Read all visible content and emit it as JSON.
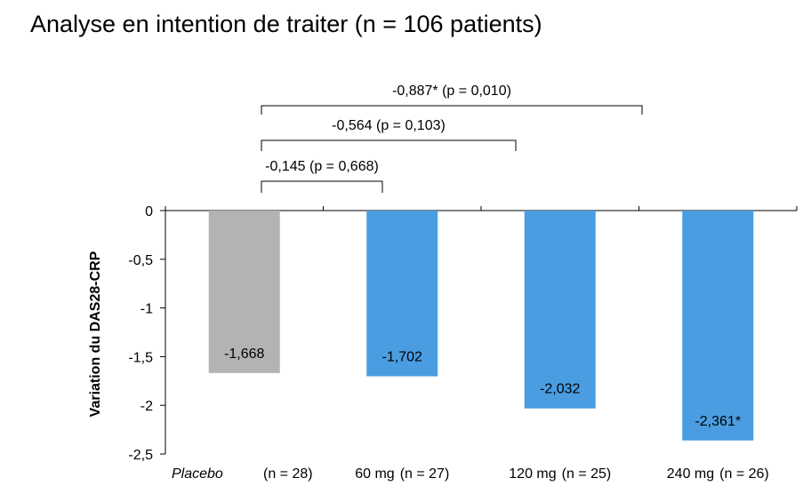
{
  "chart_data": {
    "type": "bar",
    "title": "Analyse en intention de traiter (n = 106 patients)",
    "ylabel": "Variation du DAS28-CRP",
    "ylim": [
      -2.5,
      0
    ],
    "yticks": [
      "0",
      "-0,5",
      "-1",
      "-1,5",
      "-2",
      "-2,5"
    ],
    "ytick_values": [
      0,
      -0.5,
      -1,
      -1.5,
      -2,
      -2.5
    ],
    "categories": [
      {
        "name": "Placebo",
        "n": "(n = 28)"
      },
      {
        "name": "60 mg",
        "n": "(n = 27)"
      },
      {
        "name": "120 mg",
        "n": "(n = 25)"
      },
      {
        "name": "240 mg",
        "n": "(n = 26)"
      }
    ],
    "values": [
      -1.668,
      -1.702,
      -2.032,
      -2.361
    ],
    "value_labels": [
      "-1,668",
      "-1,702",
      "-2,032",
      "-2,361*"
    ],
    "colors": [
      "#b3b3b3",
      "#4a9de0",
      "#4a9de0",
      "#4a9de0"
    ],
    "comparisons": [
      {
        "from": 0,
        "to": 1,
        "label": "-0,145 (p = 0,668)"
      },
      {
        "from": 0,
        "to": 2,
        "label": "-0,564 (p = 0,103)"
      },
      {
        "from": 0,
        "to": 3,
        "label": "-0,887* (p = 0,010)"
      }
    ],
    "grid": false
  }
}
